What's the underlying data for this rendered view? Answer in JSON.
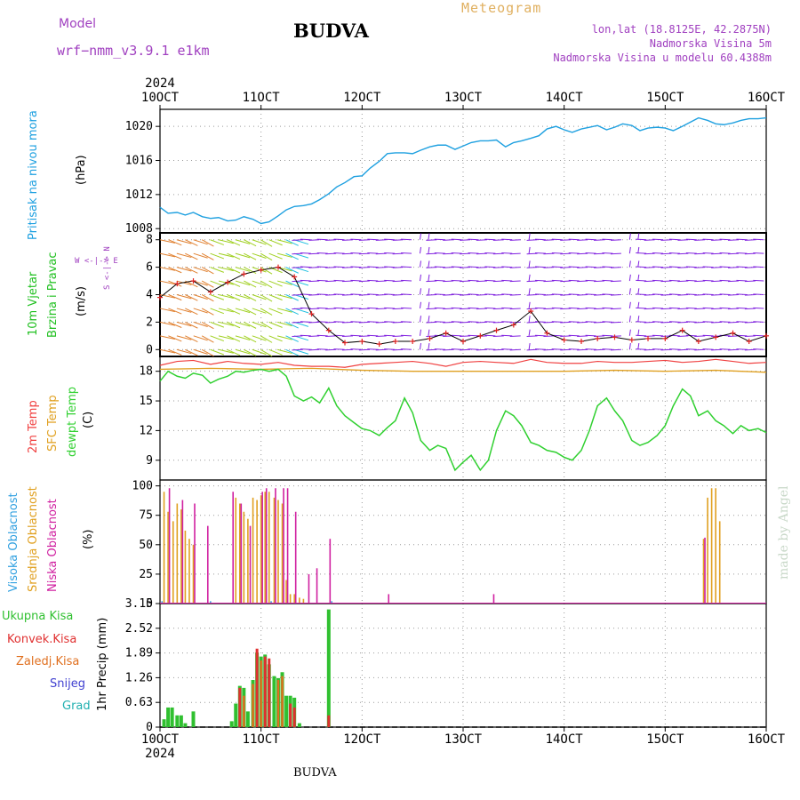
{
  "header": {
    "model_label": "Model",
    "model_name": "wrf−nmm_v3.9.1  e1km",
    "station": "BUDVA",
    "meteogram": "Meteogram",
    "lonlat": "lon,lat (18.8125E, 42.2875N)",
    "elevation": "Nadmorska Visina 5m",
    "model_elevation": "Nadmorska Visina u modelu 60.4388m",
    "footer_station": "BUDVA",
    "credit": "made by Angel"
  },
  "colors": {
    "pressure": "#1ea0e0",
    "wind_label": "#20c020",
    "temp2m": "#f04040",
    "sfc": "#e0a020",
    "dewpt": "#30d030",
    "high_cloud": "#30a0e0",
    "mid_cloud": "#e0a020",
    "low_cloud": "#d020a0",
    "precip_total": "#30c030",
    "precip_conv": "#e03030",
    "precip_grid": "#e07020",
    "snow": "#4040d0",
    "hail": "#20b0b0",
    "purple_text": "#a040c0"
  },
  "time_axis": {
    "year": "2024",
    "ticks": [
      "10OCT",
      "11OCT",
      "12OCT",
      "13OCT",
      "14OCT",
      "15OCT",
      "16OCT"
    ]
  },
  "chart_data": [
    {
      "type": "line",
      "id": "pressure",
      "ylabel": "Pritisak na nivou mora",
      "unit": "(hPa)",
      "ylim": [
        1007.5,
        1022
      ],
      "yticks": [
        1008,
        1012,
        1016,
        1020
      ],
      "series": [
        {
          "x": [
            0,
            0.08,
            0.17,
            0.25,
            0.33,
            0.42,
            0.5,
            0.58,
            0.67,
            0.75,
            0.83,
            0.92,
            1.0,
            1.08,
            1.17,
            1.25,
            1.33,
            1.42,
            1.5,
            1.58,
            1.67,
            1.75,
            1.83,
            1.92,
            2.0,
            2.08,
            2.17,
            2.25,
            2.33,
            2.42,
            2.5,
            2.58,
            2.67,
            2.75,
            2.83,
            2.92,
            3.0,
            3.08,
            3.17,
            3.25,
            3.33,
            3.42,
            3.5,
            3.58,
            3.67,
            3.75,
            3.83,
            3.92,
            4.0,
            4.08,
            4.17,
            4.25,
            4.33,
            4.42,
            4.5,
            4.58,
            4.67,
            4.75,
            4.83,
            4.92,
            5.0,
            5.08,
            5.17,
            5.25,
            5.33,
            5.42,
            5.5,
            5.58,
            5.67,
            5.75,
            5.83,
            5.92,
            6.0
          ],
          "y": [
            1010.5,
            1009.8,
            1009.9,
            1009.6,
            1009.9,
            1009.4,
            1009.2,
            1009.3,
            1008.9,
            1009.0,
            1009.4,
            1009.1,
            1008.6,
            1008.8,
            1009.5,
            1010.2,
            1010.6,
            1010.7,
            1010.9,
            1011.4,
            1012.1,
            1012.9,
            1013.4,
            1014.1,
            1014.2,
            1015.1,
            1015.9,
            1016.8,
            1016.9,
            1016.9,
            1016.8,
            1017.2,
            1017.6,
            1017.8,
            1017.8,
            1017.3,
            1017.7,
            1018.1,
            1018.3,
            1018.3,
            1018.4,
            1017.6,
            1018.1,
            1018.3,
            1018.6,
            1018.9,
            1019.7,
            1020.0,
            1019.6,
            1019.3,
            1019.7,
            1019.9,
            1020.1,
            1019.6,
            1019.9,
            1020.3,
            1020.1,
            1019.5,
            1019.8,
            1019.9,
            1019.8,
            1019.5,
            1020.0,
            1020.5,
            1021.0,
            1020.7,
            1020.3,
            1020.2,
            1020.4,
            1020.7,
            1020.9,
            1020.9,
            1021.0
          ]
        }
      ]
    },
    {
      "type": "wind",
      "id": "wind",
      "ylabel": [
        "10m Vjetar",
        "Brzina i Pravac"
      ],
      "unit": "(m/s)",
      "ylim": [
        -0.5,
        8.5
      ],
      "yticks": [
        0,
        2,
        4,
        6,
        8
      ],
      "compass": "W <-|-> E",
      "compass_v": "S <-|-> N",
      "series": [
        {
          "name": "speed",
          "x": [
            0,
            0.17,
            0.33,
            0.5,
            0.67,
            0.83,
            1.0,
            1.17,
            1.33,
            1.5,
            1.67,
            1.83,
            2.0,
            2.17,
            2.33,
            2.5,
            2.67,
            2.83,
            3.0,
            3.17,
            3.33,
            3.5,
            3.67,
            3.83,
            4.0,
            4.17,
            4.33,
            4.5,
            4.67,
            4.83,
            5.0,
            5.17,
            5.33,
            5.5,
            5.67,
            5.83,
            6.0
          ],
          "y": [
            3.8,
            4.8,
            5.0,
            4.2,
            4.9,
            5.5,
            5.8,
            6.0,
            5.3,
            2.6,
            1.4,
            0.5,
            0.6,
            0.4,
            0.6,
            0.6,
            0.8,
            1.2,
            0.6,
            1.0,
            1.4,
            1.8,
            2.8,
            1.2,
            0.7,
            0.6,
            0.8,
            0.9,
            0.7,
            0.8,
            0.8,
            1.4,
            0.6,
            0.9,
            1.2,
            0.6,
            1.0
          ]
        }
      ]
    },
    {
      "type": "line",
      "id": "temperature",
      "ylabel": [
        "2m Temp",
        "SFC Temp",
        "dewpt Temp"
      ],
      "unit": "(C)",
      "ylim": [
        7,
        19.5
      ],
      "yticks": [
        9,
        12,
        15,
        18
      ],
      "series": [
        {
          "name": "2m Temp",
          "x": [
            0,
            0.17,
            0.33,
            0.5,
            0.67,
            0.83,
            1.0,
            1.17,
            1.33,
            1.5,
            1.67,
            1.83,
            2.0,
            2.17,
            2.33,
            2.5,
            2.67,
            2.83,
            3.0,
            3.17,
            3.33,
            3.5,
            3.67,
            3.83,
            4.0,
            4.17,
            4.33,
            4.5,
            4.67,
            4.83,
            5.0,
            5.17,
            5.33,
            5.5,
            5.67,
            5.83,
            6.0
          ],
          "y": [
            18.6,
            19.0,
            19.1,
            18.7,
            19.0,
            18.8,
            18.7,
            18.9,
            18.6,
            18.5,
            18.5,
            18.4,
            18.7,
            18.8,
            18.9,
            19.0,
            18.8,
            18.5,
            18.9,
            19.0,
            18.9,
            18.8,
            19.2,
            18.9,
            18.8,
            18.8,
            19.0,
            18.9,
            18.9,
            19.0,
            19.1,
            18.9,
            19.0,
            19.2,
            19.0,
            18.8,
            18.9
          ]
        },
        {
          "name": "SFC Temp",
          "x": [
            0,
            0.5,
            1.0,
            1.5,
            2.0,
            2.5,
            3.0,
            3.5,
            4.0,
            4.5,
            5.0,
            5.5,
            6.0
          ],
          "y": [
            18.2,
            18.3,
            18.2,
            18.3,
            18.1,
            18.0,
            18.0,
            18.0,
            18.0,
            18.1,
            18.0,
            18.1,
            17.9
          ]
        },
        {
          "name": "dewpt Temp",
          "x": [
            0,
            0.08,
            0.17,
            0.25,
            0.33,
            0.42,
            0.5,
            0.58,
            0.67,
            0.75,
            0.83,
            0.92,
            1.0,
            1.08,
            1.17,
            1.25,
            1.33,
            1.42,
            1.5,
            1.58,
            1.67,
            1.75,
            1.83,
            1.92,
            2.0,
            2.08,
            2.17,
            2.25,
            2.33,
            2.42,
            2.5,
            2.58,
            2.67,
            2.75,
            2.83,
            2.92,
            3.0,
            3.08,
            3.17,
            3.25,
            3.33,
            3.42,
            3.5,
            3.58,
            3.67,
            3.75,
            3.83,
            3.92,
            4.0,
            4.08,
            4.17,
            4.25,
            4.33,
            4.42,
            4.5,
            4.58,
            4.67,
            4.75,
            4.83,
            4.92,
            5.0,
            5.08,
            5.17,
            5.25,
            5.33,
            5.42,
            5.5,
            5.58,
            5.67,
            5.75,
            5.83,
            5.92,
            6.0
          ],
          "y": [
            17.0,
            18.0,
            17.5,
            17.3,
            17.8,
            17.6,
            16.8,
            17.2,
            17.5,
            18.0,
            17.9,
            18.1,
            18.2,
            18.0,
            18.2,
            17.5,
            15.5,
            15.0,
            15.4,
            14.8,
            16.3,
            14.5,
            13.5,
            12.8,
            12.2,
            12.0,
            11.5,
            12.3,
            13.0,
            15.3,
            13.8,
            11.0,
            10.0,
            10.5,
            10.2,
            8.0,
            8.8,
            9.5,
            8.0,
            9.0,
            12.0,
            14.0,
            13.5,
            12.5,
            10.8,
            10.5,
            10.0,
            9.8,
            9.3,
            9.0,
            10.0,
            12.0,
            14.5,
            15.3,
            14.0,
            13.0,
            11.0,
            10.5,
            10.8,
            11.5,
            12.5,
            14.5,
            16.2,
            15.5,
            13.5,
            14.0,
            13.0,
            12.5,
            11.7,
            12.5,
            12.0,
            12.2,
            11.8
          ]
        }
      ]
    },
    {
      "type": "bar",
      "id": "clouds",
      "ylabel": [
        "Visoka Oblacnost",
        "Srednja Oblacnost",
        "Niska Oblacnost"
      ],
      "unit": "(%)",
      "ylim": [
        0,
        105
      ],
      "yticks": [
        0,
        25,
        50,
        75,
        100
      ],
      "series": [
        {
          "name": "Srednja Oblacnost",
          "x": [
            0.04,
            0.08,
            0.13,
            0.17,
            0.21,
            0.25,
            0.29,
            0.33,
            0.75,
            0.79,
            0.83,
            0.87,
            0.92,
            0.96,
            1.0,
            1.04,
            1.08,
            1.13,
            1.17,
            1.21,
            1.25,
            1.29,
            1.33,
            1.38,
            1.42,
            5.38,
            5.42,
            5.46,
            5.5,
            5.54
          ],
          "y": [
            95,
            78,
            70,
            85,
            80,
            62,
            55,
            50,
            90,
            85,
            78,
            72,
            90,
            88,
            92,
            95,
            95,
            90,
            88,
            85,
            20,
            8,
            8,
            5,
            4,
            55,
            90,
            98,
            98,
            70
          ]
        },
        {
          "name": "Niska Oblacnost",
          "x": [
            0.08,
            0.21,
            0.33,
            0.46,
            0.71,
            0.79,
            0.88,
            1.0,
            1.04,
            1.13,
            1.21,
            1.25,
            1.33,
            1.46,
            1.54,
            1.67,
            2.25,
            3.29,
            5.38
          ],
          "y": [
            98,
            88,
            85,
            66,
            95,
            85,
            66,
            95,
            98,
            98,
            98,
            98,
            78,
            25,
            30,
            55,
            8,
            8,
            56
          ]
        },
        {
          "name": "Visoka Oblacnost",
          "x": [
            0.02,
            0.5,
            1.1,
            1.7
          ],
          "y": [
            2,
            2,
            2,
            2
          ]
        }
      ]
    },
    {
      "type": "bar",
      "id": "precip",
      "ylabel": "1hr Precip (mm)",
      "ylim": [
        0,
        3.15
      ],
      "yticks": [
        0,
        0.63,
        1.26,
        1.89,
        2.52,
        3.15
      ],
      "legend": [
        "Ukupna Kisa",
        "Konvek.Kisa",
        "Zaledj.Kisa",
        "Snijeg",
        "Grad"
      ],
      "series": [
        {
          "name": "Ukupna Kisa",
          "x": [
            0.04,
            0.08,
            0.12,
            0.17,
            0.21,
            0.25,
            0.33,
            0.71,
            0.75,
            0.79,
            0.83,
            0.87,
            0.92,
            0.96,
            1.0,
            1.04,
            1.08,
            1.13,
            1.17,
            1.21,
            1.25,
            1.29,
            1.33,
            1.38,
            1.67
          ],
          "y": [
            0.2,
            0.5,
            0.5,
            0.3,
            0.3,
            0.1,
            0.4,
            0.15,
            0.6,
            1.05,
            1.0,
            0.4,
            1.2,
            1.9,
            1.8,
            1.85,
            1.6,
            1.3,
            1.25,
            1.4,
            0.8,
            0.8,
            0.75,
            0.1,
            3.0
          ]
        },
        {
          "name": "Konvek.Kisa",
          "x": [
            0.79,
            0.96,
            1.04,
            1.08,
            1.29,
            1.33,
            1.67
          ],
          "y": [
            1.0,
            2.0,
            1.8,
            1.75,
            0.6,
            0.5,
            0.3
          ]
        },
        {
          "name": "Zaledj.Kisa",
          "x": [
            0.83,
            0.92,
            1.0,
            1.17,
            1.21
          ],
          "y": [
            0.8,
            1.1,
            1.7,
            1.2,
            1.3
          ]
        }
      ]
    }
  ]
}
